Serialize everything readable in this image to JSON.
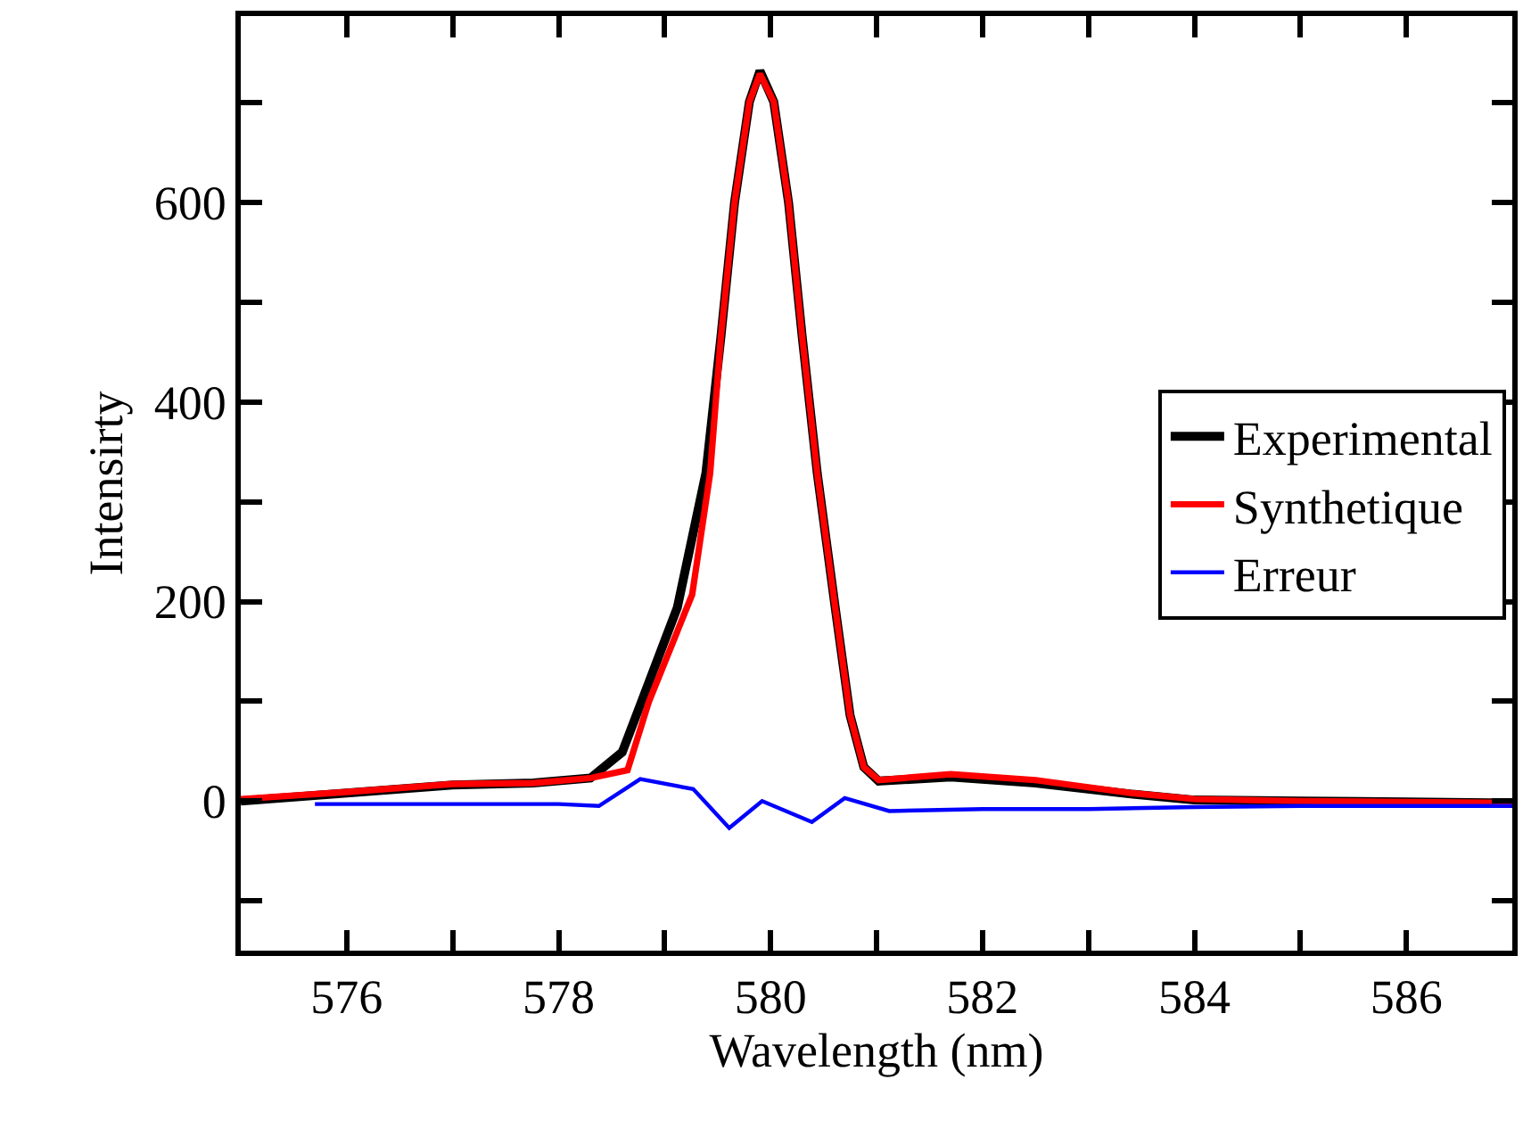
{
  "chart_data": {
    "type": "line",
    "xlabel": "Wavelength (nm)",
    "ylabel": "Intensirty",
    "xlim": [
      575,
      587
    ],
    "ylim": [
      -150,
      787
    ],
    "xticks": [
      {
        "value": 575,
        "label": null
      },
      576,
      {
        "value": 577,
        "label": null
      },
      578,
      {
        "value": 579,
        "label": null
      },
      580,
      {
        "value": 581,
        "label": null
      },
      582,
      {
        "value": 583,
        "label": null
      },
      584,
      {
        "value": 585,
        "label": null
      },
      586,
      {
        "value": 587,
        "label": null
      }
    ],
    "yticks": [
      {
        "value": -100,
        "label": null
      },
      0,
      {
        "value": 100,
        "label": null
      },
      200,
      {
        "value": 300,
        "label": null
      },
      400,
      {
        "value": 500,
        "label": null
      },
      600,
      {
        "value": 700,
        "label": null
      }
    ],
    "grid": false,
    "legend": "right",
    "marker": "none",
    "line_style": "solid",
    "series": [
      {
        "name": "Experimental",
        "color": "#000000",
        "x": [
          575,
          576,
          577,
          577.76,
          578.3,
          578.6,
          578.78,
          579.12,
          579.39,
          579.53,
          579.66,
          579.8,
          579.9,
          580.03,
          580.17,
          580.3,
          580.44,
          580.61,
          580.75,
          580.88,
          581.02,
          581.7,
          582.5,
          583.4,
          584,
          585,
          586,
          587
        ],
        "values": [
          0,
          8,
          16,
          18,
          23,
          49,
          99,
          194,
          329,
          464,
          600,
          701,
          732,
          701,
          600,
          464,
          329,
          194,
          86,
          34,
          20,
          24,
          18,
          7,
          1,
          0,
          -1,
          -2
        ]
      },
      {
        "name": "Synthetique",
        "color": "#ff0000",
        "x": [
          575,
          576,
          577,
          577.76,
          578.3,
          578.65,
          578.85,
          579.26,
          579.43,
          579.53,
          579.66,
          579.8,
          579.9,
          580.03,
          580.17,
          580.3,
          580.44,
          580.61,
          580.75,
          580.88,
          581.02,
          581.7,
          582.5,
          583.4,
          584,
          585,
          586,
          587
        ],
        "values": [
          2,
          9,
          17,
          18,
          23,
          31,
          99,
          207,
          329,
          464,
          600,
          701,
          729,
          701,
          600,
          464,
          329,
          194,
          86,
          34,
          21,
          27,
          21,
          8,
          2,
          0,
          -1,
          -2
        ]
      },
      {
        "name": "Erreur",
        "color": "#0000ff",
        "x": [
          575.7,
          577,
          578,
          578.38,
          578.77,
          579.27,
          579.61,
          579.92,
          580.39,
          580.7,
          581.12,
          582,
          583,
          584,
          585,
          586,
          587
        ],
        "values": [
          -3,
          -3,
          -3,
          -5,
          22,
          12,
          -27,
          0,
          -21,
          3,
          -10,
          -8,
          -8,
          -6,
          -5,
          -5,
          -5
        ]
      }
    ]
  }
}
